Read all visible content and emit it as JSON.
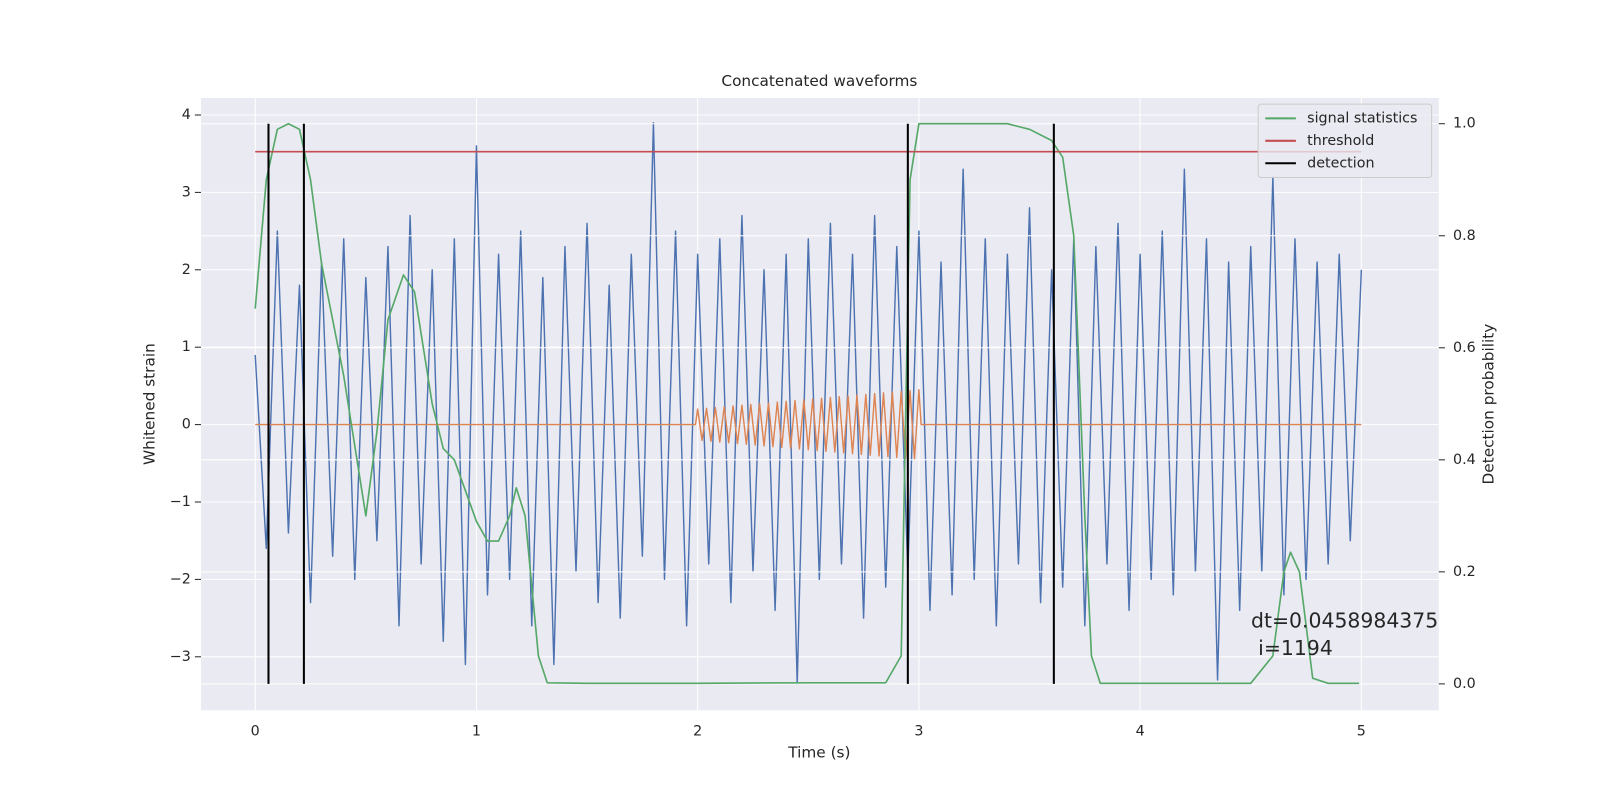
{
  "chart_data": {
    "type": "line",
    "title": "Concatenated waveforms",
    "xlabel": "Time (s)",
    "ylabel": "Whitened strain",
    "y2label": "Detection probability",
    "xlim": [
      -0.245,
      5.35
    ],
    "ylim": [
      -3.69,
      4.22
    ],
    "y2lim": [
      -0.047,
      1.046
    ],
    "xticks": [
      0,
      1,
      2,
      3,
      4,
      5
    ],
    "yticks": [
      {
        "value": -3,
        "label": "−3"
      },
      {
        "value": -2,
        "label": "−2"
      },
      {
        "value": -1,
        "label": "−1"
      },
      0,
      1,
      2,
      3,
      4
    ],
    "y2ticks": [
      {
        "value": 0,
        "label": "0.0"
      },
      {
        "value": 0.2,
        "label": "0.2"
      },
      {
        "value": 0.4,
        "label": "0.4"
      },
      {
        "value": 0.6,
        "label": "0.6"
      },
      {
        "value": 0.8,
        "label": "0.8"
      },
      {
        "value": 1,
        "label": "1.0"
      }
    ],
    "grid": true,
    "legend": "upper right",
    "series": [
      {
        "color": "#4c72b0",
        "axis": "y",
        "x": [
          0,
          0.05,
          0.1,
          0.15,
          0.2,
          0.25,
          0.3,
          0.35,
          0.4,
          0.45,
          0.5,
          0.55,
          0.6,
          0.65,
          0.7,
          0.75,
          0.8,
          0.85,
          0.9,
          0.95,
          1.0,
          1.05,
          1.1,
          1.15,
          1.2,
          1.25,
          1.3,
          1.35,
          1.4,
          1.45,
          1.5,
          1.55,
          1.6,
          1.65,
          1.7,
          1.75,
          1.8,
          1.85,
          1.9,
          1.95,
          2.0,
          2.05,
          2.1,
          2.15,
          2.2,
          2.25,
          2.3,
          2.35,
          2.4,
          2.45,
          2.5,
          2.55,
          2.6,
          2.65,
          2.7,
          2.75,
          2.8,
          2.85,
          2.9,
          2.95,
          3.0,
          3.05,
          3.1,
          3.15,
          3.2,
          3.25,
          3.3,
          3.35,
          3.4,
          3.45,
          3.5,
          3.55,
          3.6,
          3.65,
          3.7,
          3.75,
          3.8,
          3.85,
          3.9,
          3.95,
          4.0,
          4.05,
          4.1,
          4.15,
          4.2,
          4.25,
          4.3,
          4.35,
          4.4,
          4.45,
          4.5,
          4.55,
          4.6,
          4.65,
          4.7,
          4.75,
          4.8,
          4.85,
          4.9,
          4.95,
          5.0
        ],
        "values": [
          0.9,
          -1.6,
          2.5,
          -1.4,
          1.8,
          -2.3,
          2.1,
          -1.7,
          2.4,
          -2.0,
          1.9,
          -1.5,
          2.3,
          -2.6,
          2.7,
          -1.8,
          2.0,
          -2.8,
          2.4,
          -3.1,
          3.6,
          -2.2,
          2.2,
          -2.0,
          2.5,
          -2.6,
          1.9,
          -3.1,
          2.3,
          -1.9,
          2.6,
          -2.3,
          1.8,
          -2.5,
          2.2,
          -1.7,
          3.9,
          -2.0,
          2.5,
          -2.6,
          2.2,
          -1.8,
          2.4,
          -2.3,
          2.7,
          -1.9,
          2.0,
          -2.4,
          2.2,
          -3.35,
          2.4,
          -2.0,
          2.6,
          -1.8,
          2.2,
          -2.5,
          2.7,
          -2.1,
          2.3,
          -1.9,
          2.5,
          -2.4,
          2.1,
          -2.2,
          3.3,
          -2.0,
          2.4,
          -2.6,
          2.2,
          -1.8,
          2.8,
          -2.3,
          2.0,
          -2.1,
          2.4,
          -2.6,
          2.3,
          -1.8,
          2.6,
          -2.4,
          2.2,
          -2.0,
          2.5,
          -2.2,
          3.3,
          -1.9,
          2.4,
          -3.3,
          2.1,
          -2.4,
          2.3,
          -1.9,
          3.2,
          -2.2,
          2.4,
          -2.0,
          2.1,
          -1.8,
          2.2,
          -1.5,
          2.0
        ]
      },
      {
        "color": "#dd8452",
        "axis": "y",
        "x": [
          0,
          1.99,
          2.0,
          2.02,
          2.04,
          2.06,
          2.08,
          2.1,
          2.12,
          2.14,
          2.16,
          2.18,
          2.2,
          2.22,
          2.24,
          2.26,
          2.28,
          2.3,
          2.32,
          2.34,
          2.36,
          2.38,
          2.4,
          2.42,
          2.44,
          2.46,
          2.48,
          2.5,
          2.52,
          2.54,
          2.56,
          2.58,
          2.6,
          2.62,
          2.64,
          2.66,
          2.68,
          2.7,
          2.72,
          2.74,
          2.76,
          2.78,
          2.8,
          2.82,
          2.84,
          2.86,
          2.88,
          2.9,
          2.92,
          2.94,
          2.96,
          2.98,
          3.0,
          3.01,
          5
        ],
        "values": [
          0,
          0,
          0.2,
          -0.205,
          0.21,
          -0.215,
          0.22,
          -0.225,
          0.23,
          -0.235,
          0.24,
          -0.245,
          0.25,
          -0.255,
          0.26,
          -0.265,
          0.27,
          -0.275,
          0.28,
          -0.285,
          0.29,
          -0.295,
          0.3,
          -0.305,
          0.31,
          -0.315,
          0.32,
          -0.325,
          0.33,
          -0.335,
          0.34,
          -0.345,
          0.35,
          -0.355,
          0.36,
          -0.365,
          0.37,
          -0.375,
          0.38,
          -0.385,
          0.39,
          -0.395,
          0.4,
          -0.405,
          0.41,
          -0.415,
          0.42,
          -0.425,
          0.43,
          -0.435,
          0.44,
          -0.445,
          0.45,
          0,
          0
        ]
      },
      {
        "name": "signal statistics",
        "color": "#55a868",
        "axis": "y2",
        "x": [
          0,
          0.05,
          0.1,
          0.15,
          0.2,
          0.25,
          0.3,
          0.4,
          0.5,
          0.55,
          0.6,
          0.67,
          0.72,
          0.8,
          0.85,
          0.9,
          1.0,
          1.05,
          1.1,
          1.15,
          1.18,
          1.22,
          1.28,
          1.32,
          1.5,
          2.0,
          2.5,
          2.85,
          2.92,
          2.96,
          3.0,
          3.4,
          3.5,
          3.6,
          3.65,
          3.7,
          3.75,
          3.78,
          3.82,
          4.5,
          4.6,
          4.65,
          4.68,
          4.72,
          4.78,
          4.85,
          4.99
        ],
        "values": [
          0.67,
          0.9,
          0.99,
          1.0,
          0.99,
          0.9,
          0.75,
          0.55,
          0.3,
          0.45,
          0.65,
          0.73,
          0.7,
          0.5,
          0.42,
          0.4,
          0.29,
          0.255,
          0.255,
          0.3,
          0.35,
          0.3,
          0.05,
          0.002,
          0.001,
          0.001,
          0.002,
          0.002,
          0.05,
          0.9,
          1.0,
          1.0,
          0.99,
          0.97,
          0.94,
          0.8,
          0.3,
          0.05,
          0.001,
          0.001,
          0.05,
          0.2,
          0.235,
          0.2,
          0.01,
          0.001,
          0.001
        ]
      },
      {
        "name": "threshold",
        "color": "#c44e52",
        "axis": "y2",
        "x": [
          0,
          5
        ],
        "values": [
          0.95,
          0.95
        ]
      }
    ],
    "vlines": {
      "name": "detection",
      "color": "#000000",
      "axis": "y2",
      "x": [
        0.06,
        0.22,
        2.95,
        3.61
      ],
      "span": [
        0,
        1
      ]
    },
    "annotations": [
      "dt=0.0458984375",
      "i=1194"
    ]
  }
}
